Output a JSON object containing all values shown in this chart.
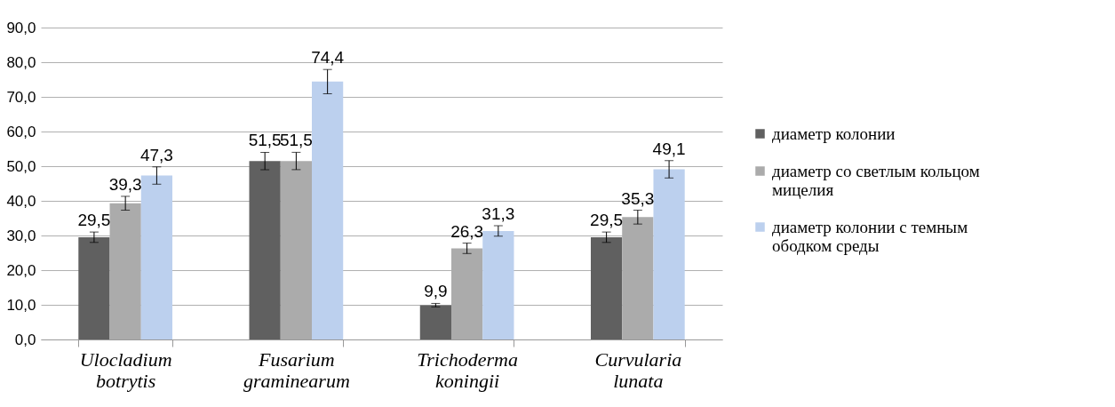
{
  "chart_data": {
    "type": "bar",
    "categories": [
      "Ulocladium botrytis",
      "Fusarium graminearum",
      "Trichoderma koningii",
      "Curvularia lunata"
    ],
    "series": [
      {
        "name": "диаметр колонии",
        "color": "#606060",
        "values": [
          29.5,
          51.5,
          9.9,
          29.5
        ],
        "errors": [
          1.5,
          2.5,
          0.5,
          1.5
        ],
        "value_labels": [
          "29,5",
          "51,5",
          "9,9",
          "29,5"
        ]
      },
      {
        "name": "диаметр со светлым кольцом мицелия",
        "color": "#ababab",
        "values": [
          39.3,
          51.5,
          26.3,
          35.3
        ],
        "errors": [
          2,
          2.5,
          1.5,
          2
        ],
        "value_labels": [
          "39,3",
          "51,5",
          "26,3",
          "35,3"
        ]
      },
      {
        "name": "диаметр колонии с темным ободком среды",
        "color": "#bcd0ee",
        "values": [
          47.3,
          74.4,
          31.3,
          49.1
        ],
        "errors": [
          2.5,
          3.5,
          1.5,
          2.5
        ],
        "value_labels": [
          "47,3",
          "74,4",
          "31,3",
          "49,1"
        ]
      }
    ],
    "ylim": [
      0,
      90
    ],
    "yticks": [
      {
        "value": 0,
        "label": "0,0"
      },
      {
        "value": 10,
        "label": "10,0"
      },
      {
        "value": 20,
        "label": "20,0"
      },
      {
        "value": 30,
        "label": "30,0"
      },
      {
        "value": 40,
        "label": "40,0"
      },
      {
        "value": 50,
        "label": "50,0"
      },
      {
        "value": 60,
        "label": "60,0"
      },
      {
        "value": 70,
        "label": "70,0"
      },
      {
        "value": 80,
        "label": "80,0"
      },
      {
        "value": 90,
        "label": "90,0"
      }
    ],
    "grid": "y",
    "legend": "right"
  }
}
